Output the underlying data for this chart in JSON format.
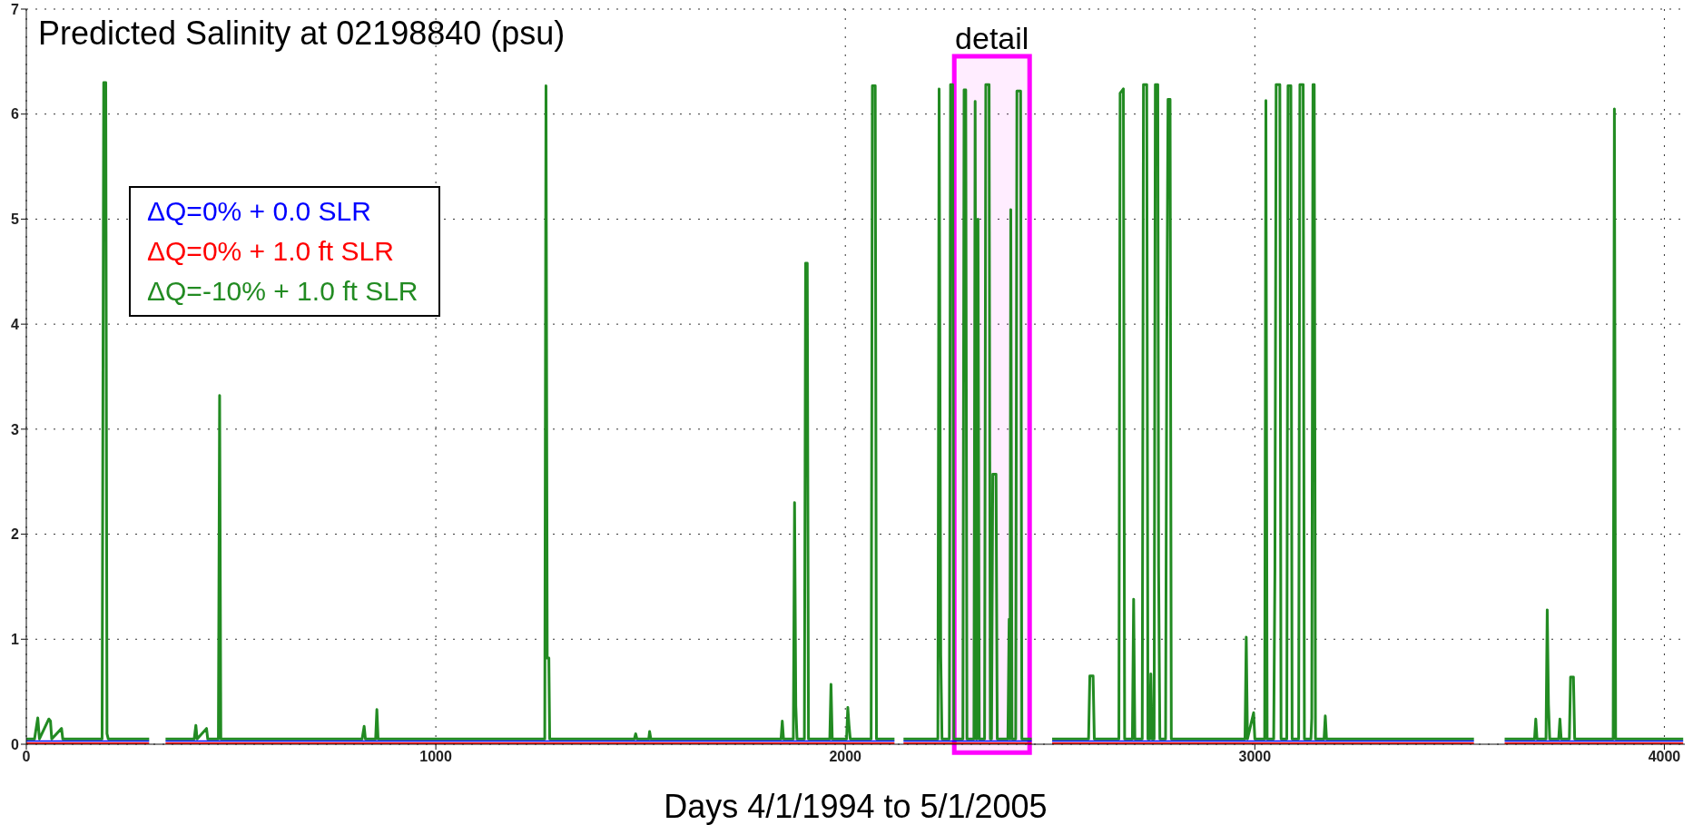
{
  "chart_data": {
    "type": "line",
    "title": "Predicted Salinity at 02198840 (psu)",
    "xlabel": "Days 4/1/1994 to 5/1/2005",
    "xlim": [
      0,
      4050
    ],
    "xticks": [
      0,
      1000,
      2000,
      3000,
      4000
    ],
    "ylim": [
      0,
      7
    ],
    "yticks": [
      0,
      1,
      2,
      3,
      4,
      5,
      6,
      7
    ],
    "grid": true,
    "legend": "top left",
    "bands": [
      {
        "axis": "x",
        "from": 2266,
        "to": 2450,
        "label": "detail",
        "color": "#ff00ff"
      }
    ],
    "series": [
      {
        "name": "ΔQ=0% + 0.0 SLR",
        "color": "#0000ff",
        "x": [
          0,
          300,
          308,
          340,
          2120,
          2124,
          2142,
          2455,
          2459,
          2505,
          3535,
          3539,
          3610,
          4046
        ],
        "values": [
          0.03,
          0.03,
          null,
          0.03,
          0.03,
          null,
          0.03,
          0.03,
          null,
          0.03,
          0.03,
          null,
          0.03,
          0.03
        ]
      },
      {
        "name": "ΔQ=0% + 1.0 ft SLR",
        "color": "#ff0000",
        "x": [
          0,
          300,
          308,
          340,
          2120,
          2124,
          2142,
          2455,
          2459,
          2505,
          3535,
          3539,
          3610,
          4046
        ],
        "values": [
          0.01,
          0.01,
          null,
          0.01,
          0.01,
          null,
          0.01,
          0.01,
          null,
          0.01,
          0.01,
          null,
          0.01,
          0.01
        ]
      },
      {
        "name": "ΔQ=-10% + 1.0 ft SLR",
        "color": "#228b22",
        "x": [
          0,
          20,
          28,
          32,
          55,
          59,
          62,
          86,
          89,
          185,
          189,
          194,
          197,
          200,
          300,
          308,
          340,
          410,
          414,
          417,
          440,
          443,
          469,
          472,
          475,
          820,
          825,
          828,
          853,
          856,
          859,
          1266,
          1269,
          1272,
          1276,
          1278,
          1485,
          1488,
          1491,
          1520,
          1522,
          1525,
          1843,
          1846,
          1849,
          1873,
          1876,
          1879,
          1882,
          1900,
          1903,
          1907,
          1910,
          1962,
          1965,
          1968,
          2003,
          2006,
          2009,
          2012,
          2063,
          2066,
          2073,
          2076,
          2120,
          2124,
          2142,
          2226,
          2229,
          2233,
          2236,
          2254,
          2257,
          2262,
          2265,
          2287,
          2290,
          2294,
          2297,
          2314,
          2317,
          2320,
          2321,
          2324,
          2327,
          2340,
          2343,
          2351,
          2354,
          2357,
          2360,
          2368,
          2371,
          2397,
          2400,
          2402,
          2404,
          2407,
          2416,
          2419,
          2428,
          2431,
          2455,
          2459,
          2505,
          2594,
          2597,
          2605,
          2608,
          2668,
          2671,
          2679,
          2682,
          2701,
          2704,
          2707,
          2725,
          2728,
          2736,
          2739,
          2743,
          2746,
          2749,
          2754,
          2757,
          2763,
          2765,
          2768,
          2782,
          2785,
          2788,
          2793,
          2796,
          2976,
          2979,
          2982,
          2997,
          3000,
          3024,
          3027,
          3030,
          3046,
          3049,
          3052,
          3061,
          3064,
          3078,
          3081,
          3088,
          3091,
          3107,
          3110,
          3118,
          3121,
          3137,
          3139,
          3142,
          3145,
          3148,
          3169,
          3172,
          3175,
          3535,
          3539,
          3610,
          3683,
          3686,
          3689,
          3711,
          3714,
          3717,
          3720,
          3742,
          3745,
          3748,
          3768,
          3771,
          3778,
          3781,
          3875,
          3878,
          3881,
          4046
        ],
        "values": [
          0.05,
          0.05,
          0.25,
          0.05,
          0.24,
          0.22,
          0.05,
          0.15,
          0.05,
          0.05,
          6.3,
          6.3,
          0.1,
          0.05,
          0.05,
          null,
          0.05,
          0.05,
          0.18,
          0.05,
          0.15,
          0.05,
          0.05,
          3.32,
          0.05,
          0.05,
          0.17,
          0.05,
          0.05,
          0.33,
          0.05,
          0.05,
          6.27,
          0.82,
          0.82,
          0.05,
          0.05,
          0.1,
          0.05,
          0.05,
          0.12,
          0.05,
          0.05,
          0.22,
          0.05,
          0.05,
          2.3,
          0.37,
          0.05,
          0.05,
          4.58,
          4.58,
          0.05,
          0.05,
          0.57,
          0.05,
          0.05,
          0.35,
          0.18,
          0.05,
          0.05,
          6.27,
          6.27,
          0.05,
          0.05,
          null,
          0.05,
          0.05,
          6.24,
          0.85,
          0.05,
          0.05,
          6.28,
          6.28,
          0.05,
          0.05,
          6.23,
          6.23,
          0.05,
          0.05,
          6.12,
          0.05,
          0.05,
          5.0,
          0.05,
          0.05,
          6.28,
          6.28,
          0.05,
          0.05,
          2.57,
          2.57,
          0.05,
          0.05,
          1.19,
          0.05,
          5.09,
          0.05,
          0.05,
          6.22,
          6.22,
          0.05,
          0.05,
          null,
          0.05,
          0.05,
          0.65,
          0.65,
          0.05,
          0.05,
          6.2,
          6.24,
          0.05,
          0.05,
          1.38,
          0.05,
          0.05,
          6.28,
          6.28,
          0.05,
          0.05,
          0.67,
          0.05,
          0.05,
          6.28,
          6.28,
          1.68,
          0.05,
          0.05,
          3.86,
          6.14,
          6.14,
          0.05,
          0.05,
          1.02,
          0.05,
          0.3,
          0.05,
          0.05,
          6.13,
          0.05,
          0.05,
          1.66,
          6.28,
          6.28,
          0.05,
          0.05,
          6.27,
          6.27,
          0.05,
          0.05,
          6.28,
          6.28,
          0.05,
          0.05,
          0.25,
          6.28,
          6.28,
          0.05,
          0.05,
          0.27,
          0.05,
          0.05,
          null,
          0.05,
          0.05,
          0.24,
          0.05,
          0.05,
          1.28,
          0.38,
          0.05,
          0.05,
          0.24,
          0.05,
          0.05,
          0.64,
          0.64,
          0.05,
          0.05,
          6.05,
          0.05,
          0.05
        ]
      }
    ]
  }
}
